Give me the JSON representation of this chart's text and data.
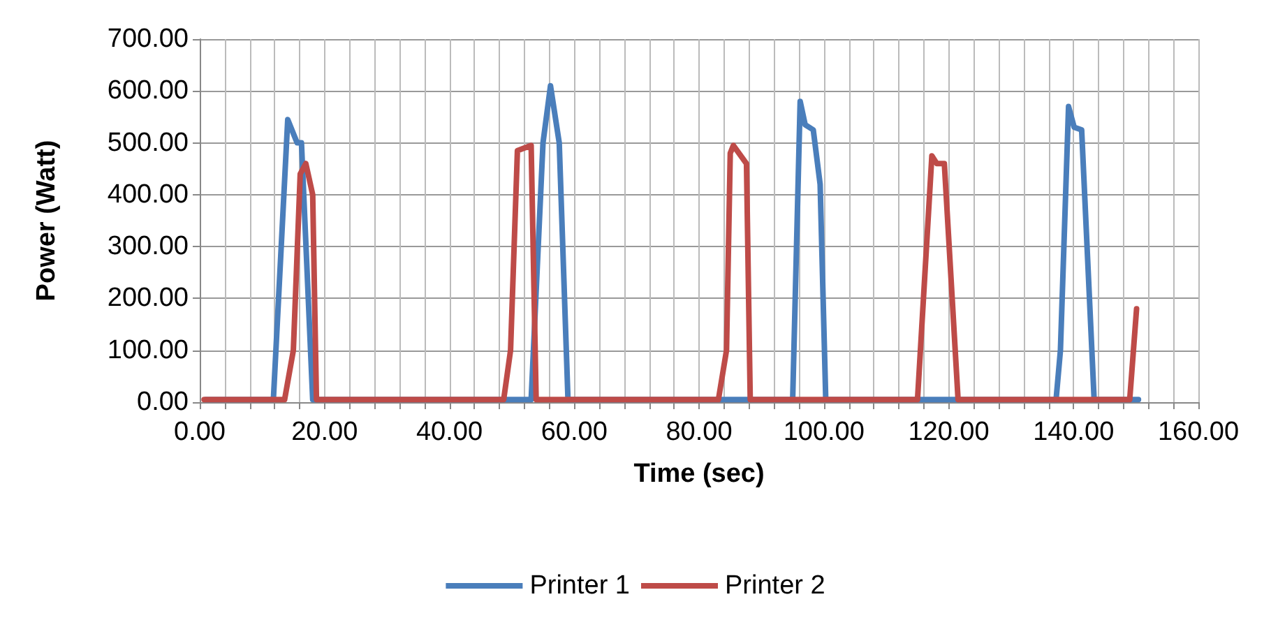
{
  "chart_data": {
    "type": "line",
    "xlabel": "Time (sec)",
    "ylabel": "Power (Watt)",
    "xlim": [
      0,
      160
    ],
    "ylim": [
      0,
      700
    ],
    "xticks": [
      {
        "value": 0,
        "label": "0.00"
      },
      {
        "value": 4,
        "label": null
      },
      {
        "value": 8,
        "label": null
      },
      {
        "value": 12,
        "label": null
      },
      {
        "value": 16,
        "label": null
      },
      {
        "value": 20,
        "label": "20.00"
      },
      {
        "value": 24,
        "label": null
      },
      {
        "value": 28,
        "label": null
      },
      {
        "value": 32,
        "label": null
      },
      {
        "value": 36,
        "label": null
      },
      {
        "value": 40,
        "label": "40.00"
      },
      {
        "value": 44,
        "label": null
      },
      {
        "value": 48,
        "label": null
      },
      {
        "value": 52,
        "label": null
      },
      {
        "value": 56,
        "label": null
      },
      {
        "value": 60,
        "label": "60.00"
      },
      {
        "value": 64,
        "label": null
      },
      {
        "value": 68,
        "label": null
      },
      {
        "value": 72,
        "label": null
      },
      {
        "value": 76,
        "label": null
      },
      {
        "value": 80,
        "label": "80.00"
      },
      {
        "value": 84,
        "label": null
      },
      {
        "value": 88,
        "label": null
      },
      {
        "value": 92,
        "label": null
      },
      {
        "value": 96,
        "label": null
      },
      {
        "value": 100,
        "label": "100.00"
      },
      {
        "value": 104,
        "label": null
      },
      {
        "value": 108,
        "label": null
      },
      {
        "value": 112,
        "label": null
      },
      {
        "value": 116,
        "label": null
      },
      {
        "value": 120,
        "label": "120.00"
      },
      {
        "value": 124,
        "label": null
      },
      {
        "value": 128,
        "label": null
      },
      {
        "value": 132,
        "label": null
      },
      {
        "value": 136,
        "label": null
      },
      {
        "value": 140,
        "label": "140.00"
      },
      {
        "value": 144,
        "label": null
      },
      {
        "value": 148,
        "label": null
      },
      {
        "value": 152,
        "label": null
      },
      {
        "value": 156,
        "label": null
      },
      {
        "value": 160,
        "label": "160.00"
      }
    ],
    "yticks": [
      {
        "value": 0,
        "label": "0.00"
      },
      {
        "value": 100,
        "label": "100.00"
      },
      {
        "value": 200,
        "label": "200.00"
      },
      {
        "value": 300,
        "label": "300.00"
      },
      {
        "value": 400,
        "label": "400.00"
      },
      {
        "value": 500,
        "label": "500.00"
      },
      {
        "value": 600,
        "label": "600.00"
      },
      {
        "value": 700,
        "label": "700.00"
      }
    ],
    "grid": true,
    "legend": "bottom",
    "marker": "none",
    "line_style": "solid",
    "series": [
      {
        "name": "Printer 1",
        "color": "#4a7ebb",
        "x": [
          1,
          11.8,
          14.1,
          15.6,
          16.3,
          18.1,
          53.1,
          55,
          56.2,
          57.6,
          59,
          95,
          96.2,
          97,
          98.3,
          99.4,
          100.3,
          137.2,
          137.9,
          139.2,
          140.1,
          141.3,
          143.3,
          150.4
        ],
        "values": [
          5,
          5,
          545,
          500,
          500,
          5,
          5,
          500,
          610,
          500,
          5,
          5,
          580,
          535,
          525,
          420,
          5,
          5,
          100,
          570,
          530,
          525,
          5,
          5
        ]
      },
      {
        "name": "Printer 2",
        "color": "#be4b48",
        "x": [
          0.7,
          13.6,
          15,
          16.1,
          17,
          18.1,
          18.7,
          48.7,
          49.8,
          50.9,
          53.1,
          53.9,
          83.1,
          84.4,
          85,
          85.5,
          87.6,
          88.2,
          115,
          117.3,
          118.1,
          119.3,
          121.5,
          149,
          150.1
        ],
        "values": [
          5,
          5,
          100,
          440,
          460,
          400,
          5,
          5,
          100,
          485,
          495,
          5,
          5,
          100,
          480,
          495,
          460,
          5,
          5,
          475,
          460,
          460,
          5,
          5,
          180
        ]
      }
    ]
  }
}
